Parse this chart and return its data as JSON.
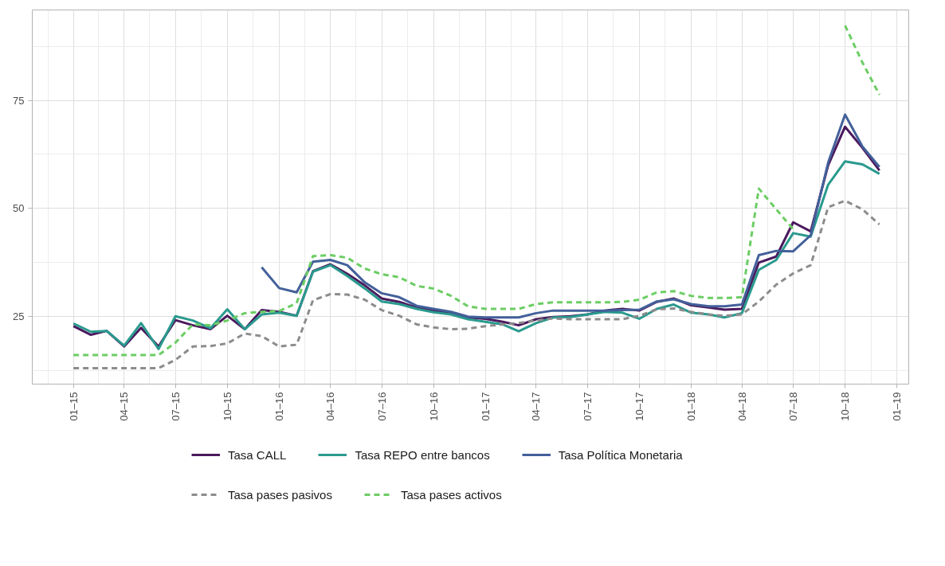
{
  "chart_data": {
    "type": "line",
    "x": [
      "2015-01",
      "2015-02",
      "2015-03",
      "2015-04",
      "2015-05",
      "2015-06",
      "2015-07",
      "2015-08",
      "2015-09",
      "2015-10",
      "2015-11",
      "2015-12",
      "2016-01",
      "2016-02",
      "2016-03",
      "2016-04",
      "2016-05",
      "2016-06",
      "2016-07",
      "2016-08",
      "2016-09",
      "2016-10",
      "2016-11",
      "2016-12",
      "2017-01",
      "2017-02",
      "2017-03",
      "2017-04",
      "2017-05",
      "2017-06",
      "2017-07",
      "2017-08",
      "2017-09",
      "2017-10",
      "2017-11",
      "2017-12",
      "2018-01",
      "2018-02",
      "2018-03",
      "2018-04",
      "2018-05",
      "2018-06",
      "2018-07",
      "2018-08",
      "2018-09",
      "2018-10",
      "2018-11",
      "2018-12"
    ],
    "series": [
      {
        "name": "Tasa CALL",
        "color": "#4b1a5e",
        "line_style": "solid",
        "values": [
          22.8,
          20.8,
          21.7,
          18.1,
          22.4,
          18.1,
          24.2,
          23.0,
          22.1,
          25.2,
          22.1,
          26.5,
          26.1,
          25.2,
          35.5,
          37.1,
          34.9,
          32.2,
          29.2,
          28.4,
          27.1,
          26.4,
          25.8,
          24.8,
          24.5,
          23.8,
          23.0,
          24.4,
          24.9,
          25.1,
          25.5,
          26.4,
          26.8,
          26.4,
          28.4,
          29.2,
          27.6,
          27.1,
          26.6,
          26.8,
          37.5,
          38.9,
          46.8,
          44.7,
          60.0,
          68.9,
          64.0,
          58.8
        ]
      },
      {
        "name": "Tasa REPO entre bancos",
        "color": "#2a9a8e",
        "line_style": "solid",
        "values": [
          23.4,
          21.5,
          21.7,
          18.3,
          23.5,
          17.5,
          25.1,
          24.1,
          22.3,
          26.7,
          22.1,
          25.5,
          25.9,
          25.2,
          35.4,
          36.9,
          34.4,
          31.5,
          28.5,
          27.9,
          26.8,
          26.0,
          25.5,
          24.4,
          23.8,
          23.2,
          21.6,
          23.5,
          24.8,
          24.9,
          25.5,
          26.1,
          25.9,
          24.5,
          26.8,
          27.8,
          25.9,
          25.5,
          24.8,
          25.8,
          35.8,
          38.1,
          44.3,
          43.5,
          55.5,
          60.9,
          60.2,
          58.0
        ]
      },
      {
        "name": "Tasa Política Monetaria",
        "color": "#43609a",
        "line_style": "solid",
        "values": [
          null,
          null,
          null,
          null,
          null,
          null,
          null,
          null,
          null,
          null,
          null,
          36.4,
          31.6,
          30.6,
          37.7,
          38.1,
          36.9,
          32.9,
          30.4,
          29.5,
          27.5,
          26.8,
          26.1,
          25.0,
          24.8,
          24.8,
          24.8,
          25.8,
          26.4,
          26.4,
          26.4,
          26.4,
          26.5,
          26.6,
          28.5,
          29.0,
          27.9,
          27.4,
          27.4,
          27.8,
          39.2,
          40.2,
          40.1,
          43.8,
          60.6,
          71.7,
          64.3,
          59.6
        ]
      },
      {
        "name": "Tasa pases pasivos",
        "color": "#8c8c8c",
        "line_style": "dashed",
        "values": [
          13.1,
          13.1,
          13.1,
          13.1,
          13.1,
          13.1,
          15.0,
          18.1,
          18.2,
          18.8,
          21.1,
          20.5,
          18.1,
          18.5,
          28.8,
          30.2,
          30.1,
          28.9,
          26.5,
          25.2,
          23.2,
          22.5,
          22.1,
          22.2,
          22.8,
          23.2,
          23.5,
          24.1,
          24.6,
          24.4,
          24.4,
          24.4,
          24.4,
          25.2,
          26.7,
          26.9,
          26.1,
          25.5,
          25.2,
          25.5,
          28.5,
          32.4,
          35.0,
          36.9,
          50.3,
          51.8,
          49.8,
          46.3
        ]
      },
      {
        "name": "Tasa pases activos",
        "color": "#6ccd64",
        "line_style": "dashed",
        "values": [
          16.1,
          16.1,
          16.1,
          16.1,
          16.1,
          16.1,
          19.0,
          23.2,
          23.0,
          24.1,
          25.8,
          26.1,
          26.3,
          28.1,
          39.0,
          39.2,
          38.6,
          36.1,
          34.8,
          34.1,
          32.1,
          31.5,
          29.8,
          27.4,
          26.8,
          26.8,
          26.8,
          27.9,
          28.3,
          28.3,
          28.3,
          28.3,
          28.4,
          28.9,
          30.6,
          30.9,
          29.8,
          29.3,
          29.3,
          29.5,
          54.6,
          49.8,
          45.2,
          null,
          null,
          92.3,
          83.7,
          76.3
        ]
      }
    ],
    "xlim": [
      "2014-10-20",
      "2019-01-22"
    ],
    "xticks": [
      {
        "value": "2015-01-01",
        "label": "01–15"
      },
      {
        "value": "2015-04-01",
        "label": "04–15"
      },
      {
        "value": "2015-07-01",
        "label": "07–15"
      },
      {
        "value": "2015-10-01",
        "label": "10–15"
      },
      {
        "value": "2016-01-01",
        "label": "01–16"
      },
      {
        "value": "2016-04-01",
        "label": "04–16"
      },
      {
        "value": "2016-07-01",
        "label": "07–16"
      },
      {
        "value": "2016-10-01",
        "label": "10–16"
      },
      {
        "value": "2017-01-01",
        "label": "01–17"
      },
      {
        "value": "2017-04-01",
        "label": "04–17"
      },
      {
        "value": "2017-07-01",
        "label": "07–17"
      },
      {
        "value": "2017-10-01",
        "label": "10–17"
      },
      {
        "value": "2018-01-01",
        "label": "01–18"
      },
      {
        "value": "2018-04-01",
        "label": "04–18"
      },
      {
        "value": "2018-07-01",
        "label": "07–18"
      },
      {
        "value": "2018-10-01",
        "label": "10–18"
      },
      {
        "value": "2019-01-01",
        "label": "01–19"
      }
    ],
    "ylim": [
      9.4,
      95.9
    ],
    "yticks": [
      25,
      50,
      75
    ],
    "grid": true,
    "legend": "bottom"
  }
}
